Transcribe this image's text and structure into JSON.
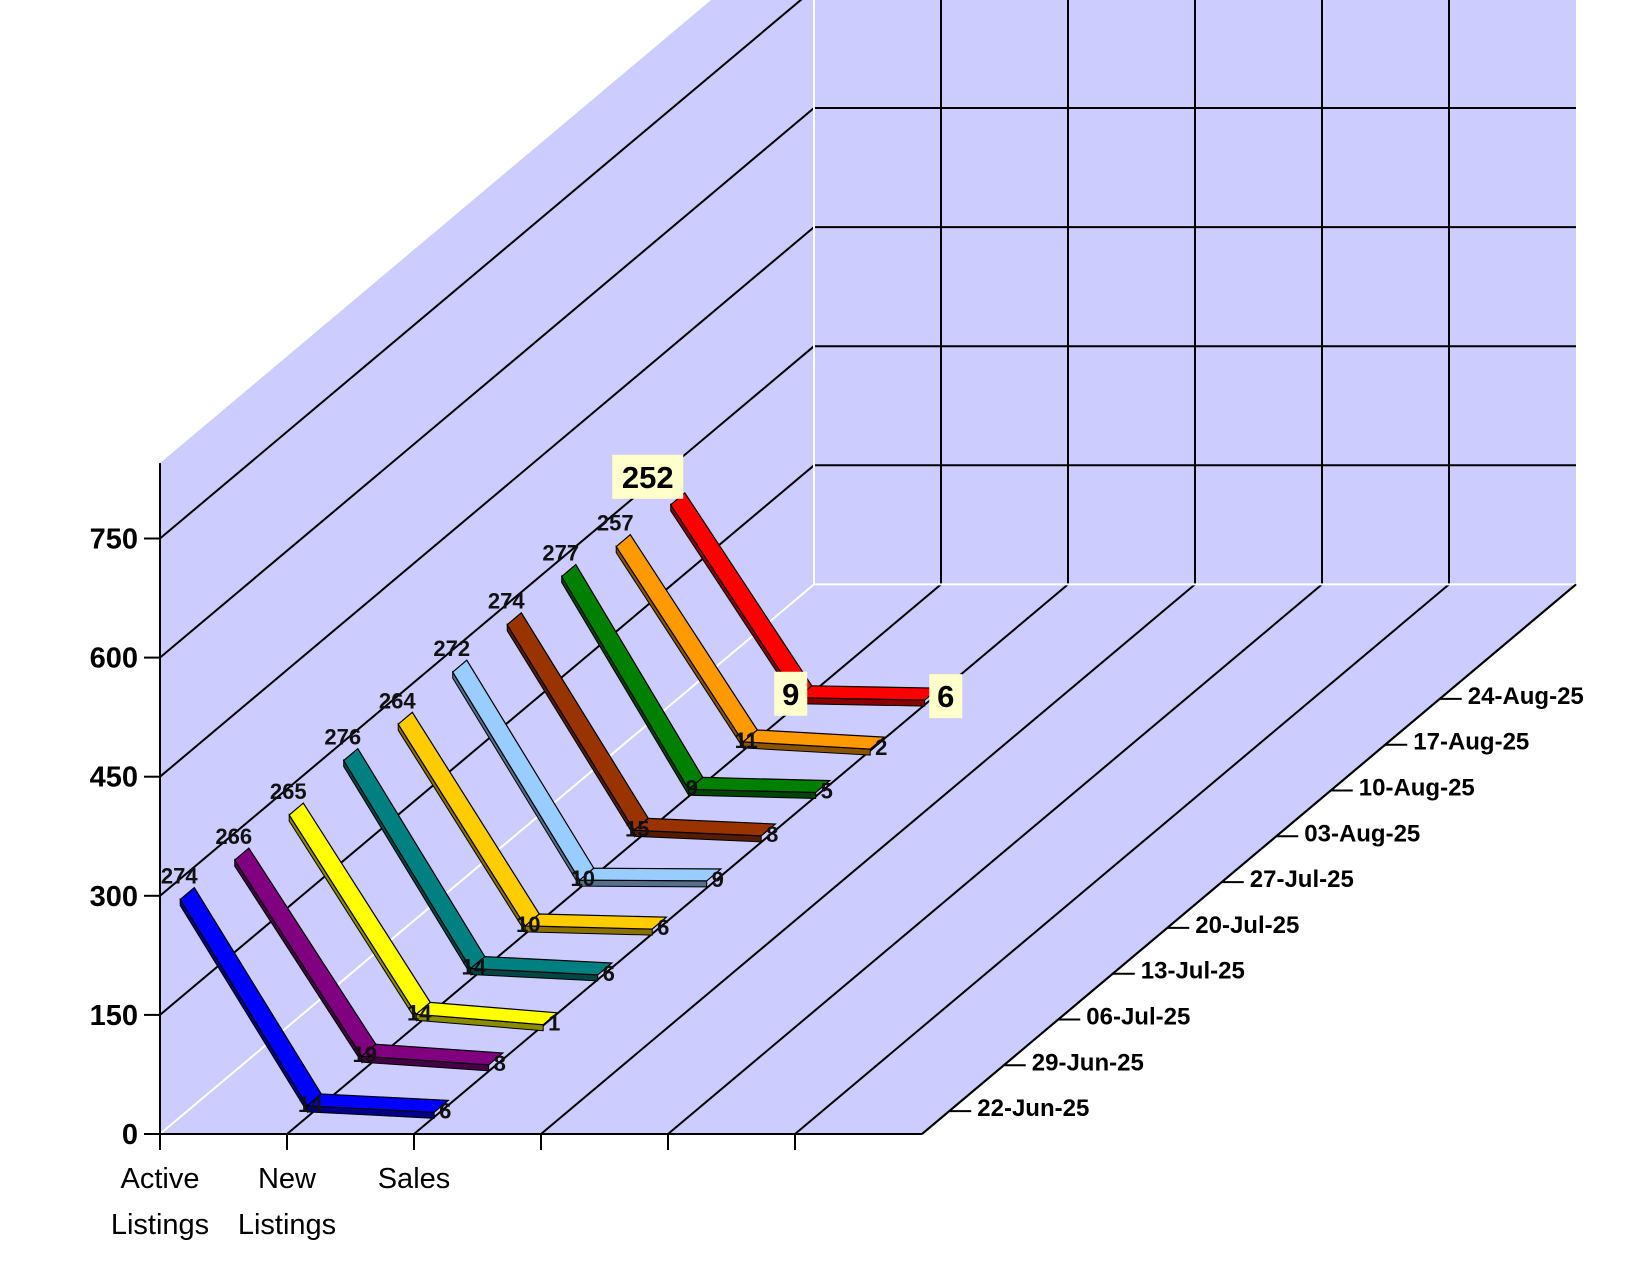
{
  "chart_data": {
    "type": "line",
    "style": "3d-ribbon",
    "title": "",
    "categories": [
      "Active\nListings",
      "New\nListings",
      "Sales"
    ],
    "y_ticks": [
      "0",
      "150",
      "300",
      "450",
      "600",
      "750"
    ],
    "ylim": [
      0,
      750
    ],
    "series": [
      {
        "date": "22-Jun-25",
        "color": "#0000ff",
        "values": [
          274,
          14,
          6
        ],
        "labels": [
          "274",
          "14",
          "6"
        ]
      },
      {
        "date": "29-Jun-25",
        "color": "#800080",
        "values": [
          266,
          19,
          8
        ],
        "labels": [
          "266",
          "19",
          "8"
        ]
      },
      {
        "date": "06-Jul-25",
        "color": "#ffff00",
        "values": [
          265,
          14,
          1
        ],
        "labels": [
          "265",
          "14",
          "1"
        ]
      },
      {
        "date": "13-Jul-25",
        "color": "#008080",
        "values": [
          276,
          14,
          6
        ],
        "labels": [
          "276",
          "14",
          "6"
        ]
      },
      {
        "date": "20-Jul-25",
        "color": "#ffcc00",
        "values": [
          264,
          10,
          6
        ],
        "labels": [
          "264",
          "10",
          "6"
        ]
      },
      {
        "date": "27-Jul-25",
        "color": "#99ccff",
        "values": [
          272,
          10,
          9
        ],
        "labels": [
          "272",
          "10",
          "9"
        ]
      },
      {
        "date": "03-Aug-25",
        "color": "#993300",
        "values": [
          274,
          15,
          8
        ],
        "labels": [
          "274",
          "15",
          "8"
        ]
      },
      {
        "date": "10-Aug-25",
        "color": "#008000",
        "values": [
          277,
          9,
          5
        ],
        "labels": [
          "277",
          "9",
          "5"
        ]
      },
      {
        "date": "17-Aug-25",
        "color": "#ff9900",
        "values": [
          257,
          11,
          2
        ],
        "labels": [
          "257",
          "11",
          "2"
        ]
      },
      {
        "date": "24-Aug-25",
        "color": "#ff0000",
        "values": [
          252,
          9,
          6
        ],
        "labels": [
          "252",
          "9",
          "6"
        ],
        "highlight": true
      }
    ],
    "grid": true,
    "wall_color": "#ccccff",
    "highlight_box_color": "#ffffcc"
  }
}
